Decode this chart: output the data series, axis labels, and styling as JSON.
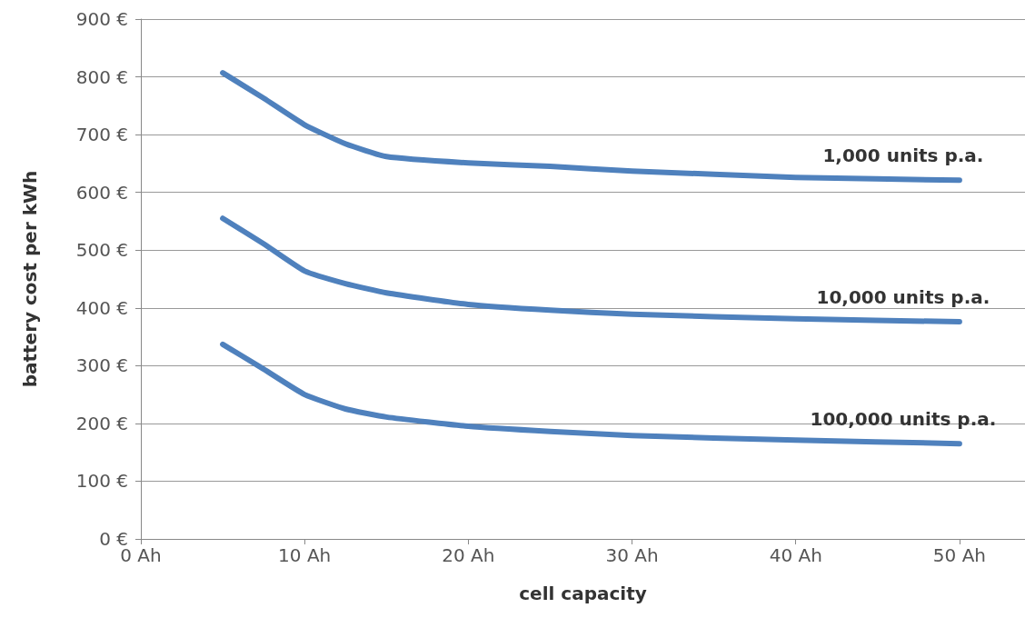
{
  "chart_data": {
    "type": "line",
    "xlabel": "cell capacity",
    "ylabel": "battery cost per kWh",
    "x": [
      5,
      7.5,
      10,
      12.5,
      15,
      20,
      25,
      30,
      40,
      50
    ],
    "series": [
      {
        "name": "1,000 units p.a.",
        "color": "#4f81bd",
        "values": [
          807,
          763,
          717,
          684,
          662,
          651,
          645,
          637,
          626,
          621
        ]
      },
      {
        "name": "10,000 units p.a.",
        "color": "#4f81bd",
        "values": [
          555,
          511,
          464,
          442,
          426,
          406,
          396,
          389,
          381,
          376
        ]
      },
      {
        "name": "100,000 units p.a.",
        "color": "#4f81bd",
        "values": [
          337,
          294,
          250,
          225,
          211,
          195,
          186,
          179,
          171,
          165
        ]
      }
    ],
    "xlim": [
      0,
      54
    ],
    "xticks": [
      {
        "value": 0,
        "label": "0 Ah"
      },
      {
        "value": 10,
        "label": "10 Ah"
      },
      {
        "value": 20,
        "label": "20 Ah"
      },
      {
        "value": 30,
        "label": "30 Ah"
      },
      {
        "value": 40,
        "label": "40 Ah"
      },
      {
        "value": 50,
        "label": "50 Ah"
      }
    ],
    "ylim": [
      0,
      900
    ],
    "yticks": [
      {
        "value": 0,
        "label": "0 €"
      },
      {
        "value": 100,
        "label": "100 €"
      },
      {
        "value": 200,
        "label": "200 €"
      },
      {
        "value": 300,
        "label": "300 €"
      },
      {
        "value": 400,
        "label": "400 €"
      },
      {
        "value": 500,
        "label": "500 €"
      },
      {
        "value": 600,
        "label": "600 €"
      },
      {
        "value": 700,
        "label": "700 €"
      },
      {
        "value": 800,
        "label": "800 €"
      },
      {
        "value": 900,
        "label": "900 €"
      }
    ],
    "grid": "y",
    "marker": "none",
    "line_style": "solid"
  }
}
